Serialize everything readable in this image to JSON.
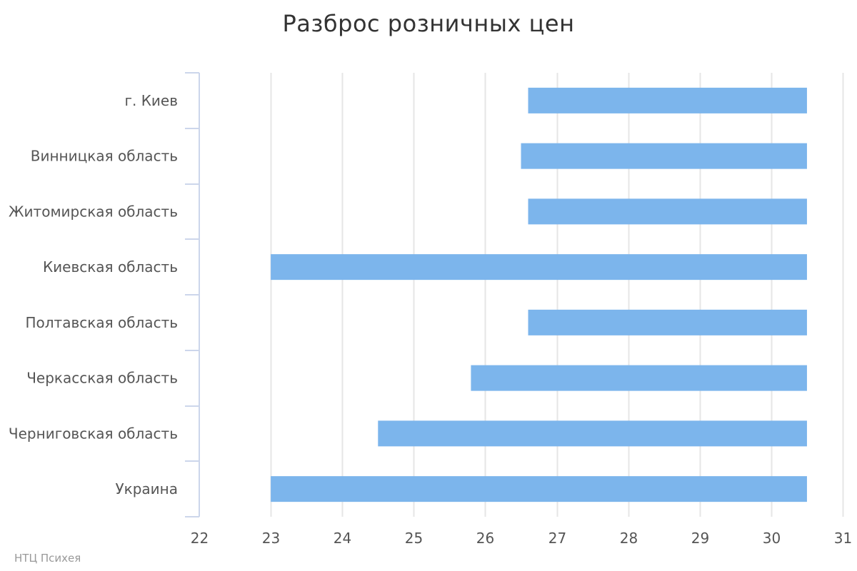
{
  "chart_data": {
    "type": "bar",
    "orientation": "horizontal",
    "title": "Разброс розничных цен",
    "categories": [
      "г. Киев",
      "Винницкая область",
      "Житомирская область",
      "Киевская область",
      "Полтавская область",
      "Черкасская область",
      "Черниговская область",
      "Украина"
    ],
    "ranges": [
      [
        26.6,
        30.5
      ],
      [
        26.5,
        30.5
      ],
      [
        26.6,
        30.5
      ],
      [
        23.0,
        30.5
      ],
      [
        26.6,
        30.5
      ],
      [
        25.8,
        30.5
      ],
      [
        24.5,
        30.5
      ],
      [
        23.0,
        30.5
      ]
    ],
    "xlim": [
      22,
      31
    ],
    "xticks": [
      22,
      23,
      24,
      25,
      26,
      27,
      28,
      29,
      30,
      31
    ],
    "grid": true,
    "bar_color": "#7cb5ec",
    "grid_color": "#e6e6e6",
    "axis_color": "#ccd6eb"
  },
  "credit": "НТЦ Психея"
}
